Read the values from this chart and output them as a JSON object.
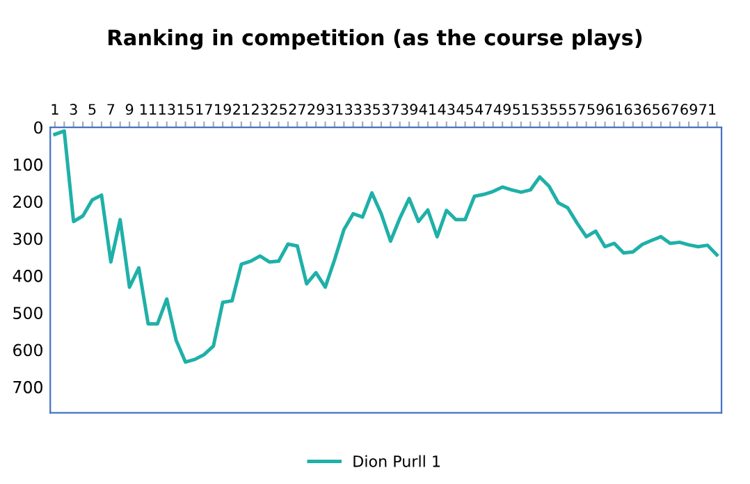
{
  "chart_data": {
    "type": "line",
    "title": "Ranking in competition (as the course plays)",
    "categories": [
      "1",
      null,
      "3",
      null,
      "5",
      null,
      "7",
      null,
      "9",
      null,
      "11",
      null,
      "13",
      null,
      "15",
      null,
      "17",
      null,
      "19",
      null,
      "21",
      null,
      "23",
      null,
      "25",
      null,
      "27",
      null,
      "29",
      null,
      "31",
      null,
      "33",
      null,
      "35",
      null,
      "37",
      null,
      "39",
      null,
      "41",
      null,
      "43",
      null,
      "45",
      null,
      "47",
      null,
      "49",
      null,
      "51",
      null,
      "53",
      null,
      "55",
      null,
      "57",
      null,
      "59",
      null,
      "61",
      null,
      "63",
      null,
      "65",
      null,
      "67",
      null,
      "69",
      null,
      "71",
      null
    ],
    "series": [
      {
        "name": "Dion Purll 1",
        "color": "#1fb0a8",
        "values": [
          19,
          10,
          254,
          239,
          196,
          183,
          363,
          249,
          431,
          379,
          530,
          530,
          463,
          574,
          633,
          626,
          613,
          590,
          472,
          468,
          369,
          361,
          347,
          363,
          361,
          315,
          320,
          422,
          392,
          431,
          357,
          276,
          233,
          242,
          177,
          233,
          307,
          245,
          192,
          254,
          223,
          295,
          224,
          249,
          249,
          186,
          181,
          173,
          161,
          169,
          175,
          169,
          134,
          159,
          204,
          217,
          258,
          295,
          280,
          322,
          313,
          339,
          336,
          316,
          305,
          295,
          313,
          310,
          317,
          322,
          318,
          344
        ]
      }
    ],
    "ylim": [
      770,
      0
    ],
    "yticks": [
      0,
      100,
      200,
      300,
      400,
      500,
      600,
      700
    ],
    "grid": false,
    "legend": "bottom",
    "marker": "none",
    "line_style": "solid"
  }
}
